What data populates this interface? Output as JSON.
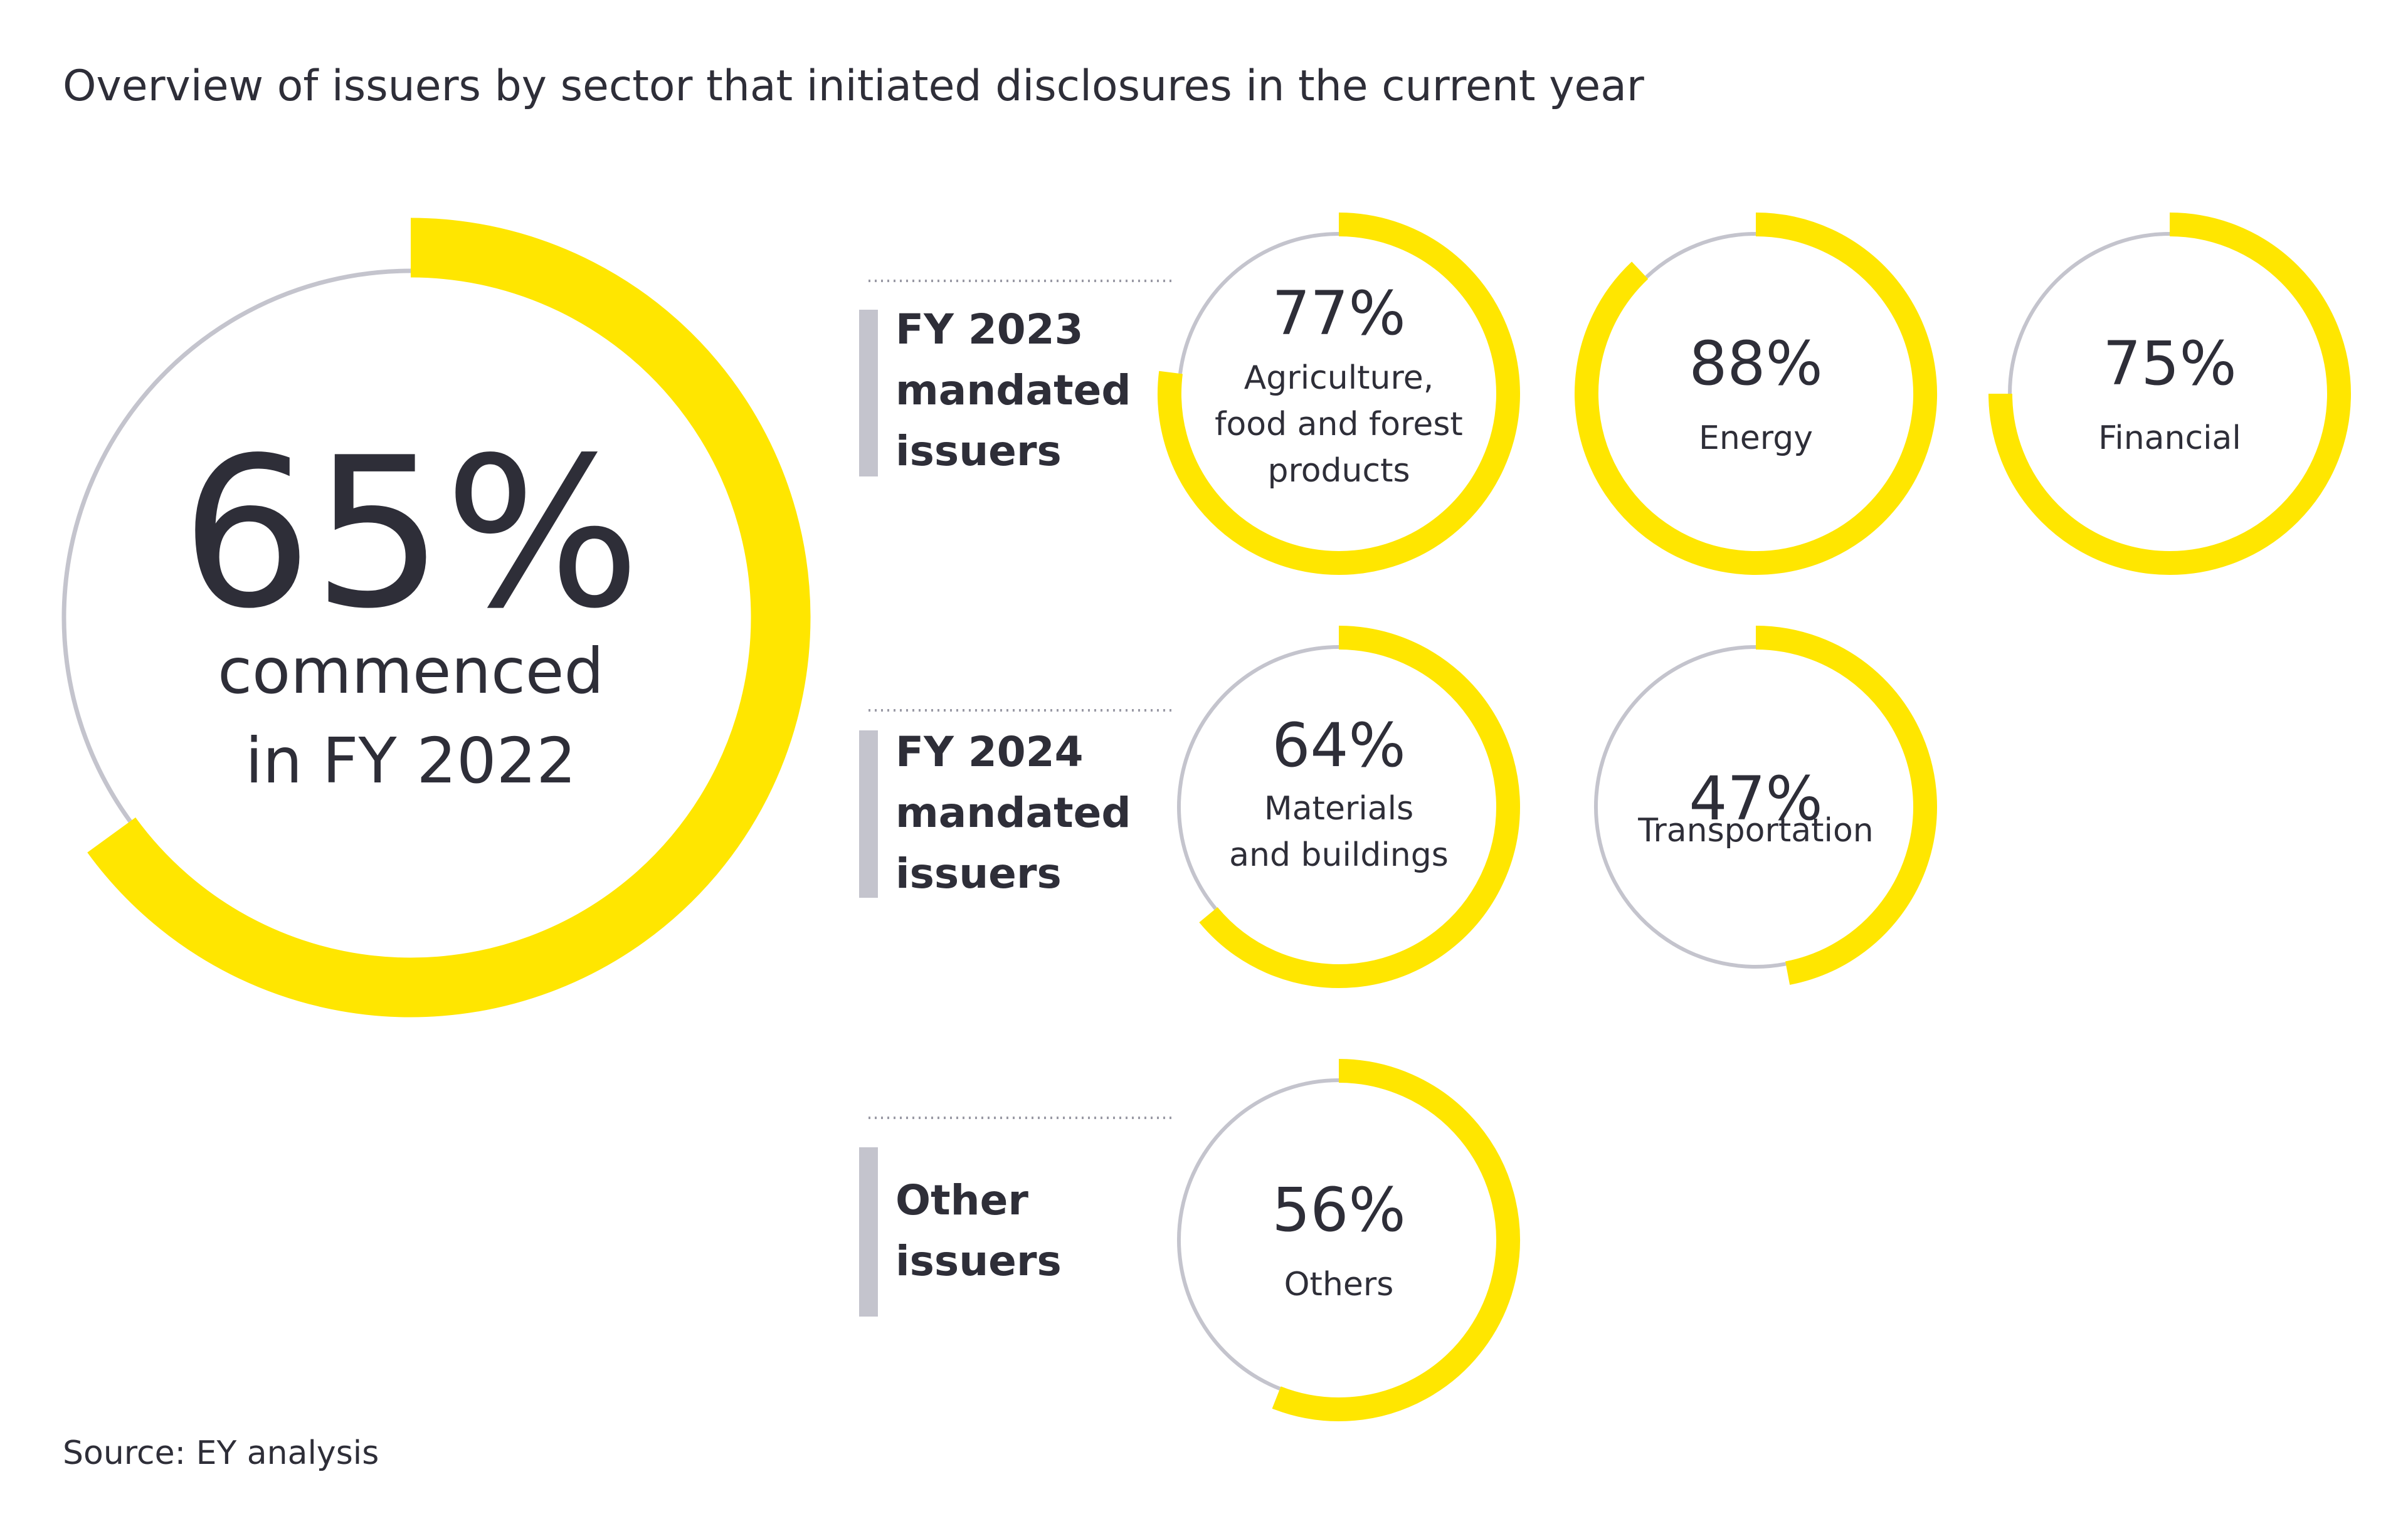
{
  "title": "Overview of issuers by sector that initiated disclosures in the current year",
  "source": "Source: EY analysis",
  "colors": {
    "accent": "#FFE600",
    "track": "#C4C4CD",
    "text": "#2E2E38"
  },
  "chart_data": {
    "type": "pie",
    "title": "Overview of issuers by sector that initiated disclosures in the current year",
    "overall": {
      "value": 65,
      "label": "65%",
      "caption": [
        "commenced",
        "in FY 2022"
      ]
    },
    "groups": [
      {
        "label": [
          "FY 2023",
          "mandated",
          "issuers"
        ],
        "sectors": [
          {
            "name": "Agriculture, food and forest products",
            "lines": [
              "Agriculture,",
              "food and forest",
              "products"
            ],
            "value": 77,
            "label": "77%"
          },
          {
            "name": "Energy",
            "lines": [
              "Energy"
            ],
            "value": 88,
            "label": "88%"
          },
          {
            "name": "Financial",
            "lines": [
              "Financial"
            ],
            "value": 75,
            "label": "75%"
          }
        ]
      },
      {
        "label": [
          "FY 2024",
          "mandated",
          "issuers"
        ],
        "sectors": [
          {
            "name": "Materials and buildings",
            "lines": [
              "Materials",
              "and buildings"
            ],
            "value": 64,
            "label": "64%"
          },
          {
            "name": "Transportation",
            "lines": [
              "Transportation"
            ],
            "value": 47,
            "label": "47%"
          }
        ]
      },
      {
        "label": [
          "Other",
          "issuers"
        ],
        "sectors": [
          {
            "name": "Others",
            "lines": [
              "Others"
            ],
            "value": 56,
            "label": "56%"
          }
        ]
      }
    ]
  }
}
